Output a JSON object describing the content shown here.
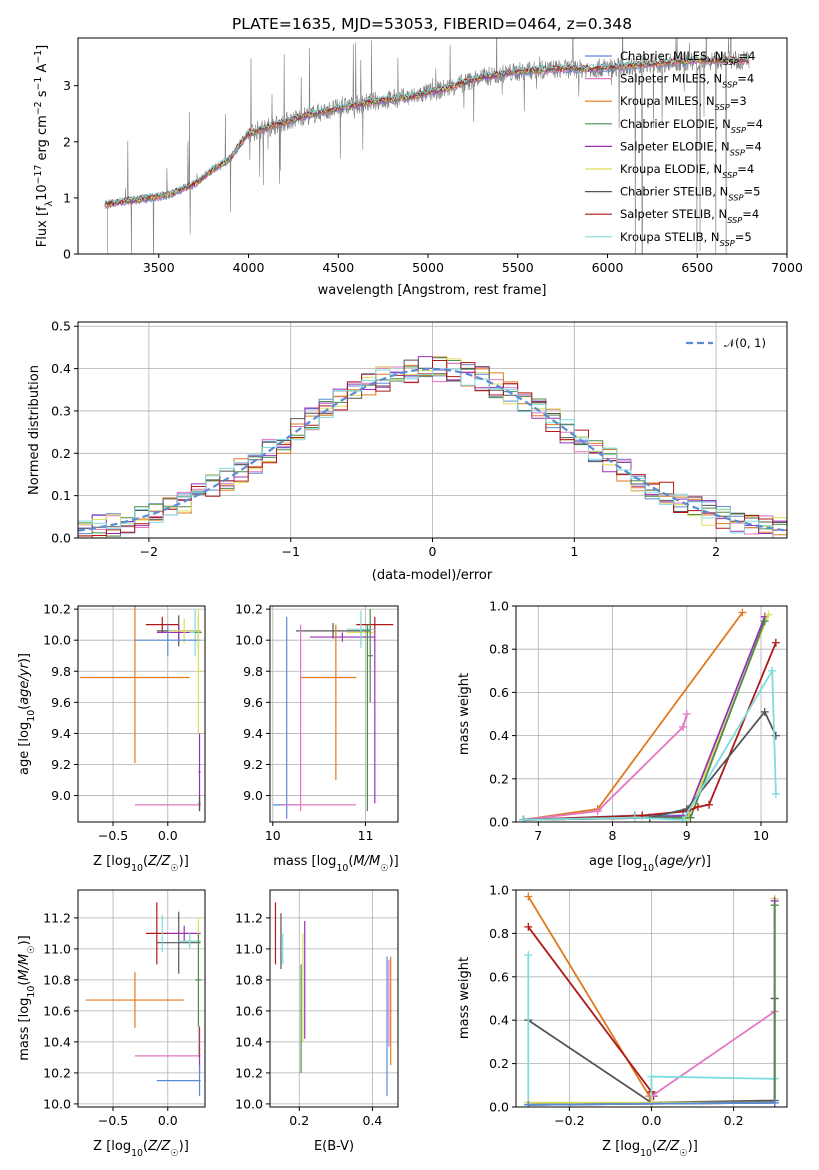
{
  "title": "PLATE=1635, MJD=53053, FIBERID=0464, z=0.348",
  "colors": {
    "chabrier_miles": "#5b8bd6",
    "salpeter_miles": "#e377c2",
    "kroupa_miles": "#e07a1f",
    "chabrier_elodie": "#4c8c4c",
    "salpeter_elodie": "#9b30b8",
    "kroupa_elodie": "#dede5a",
    "chabrier_stelib": "#555555",
    "salpeter_stelib": "#b01818",
    "kroupa_stelib": "#7fdcdc",
    "data": "#808080"
  },
  "chart_data": [
    {
      "id": "spectrum",
      "type": "line",
      "xlabel": "wavelength [Angstrom, rest frame]",
      "ylabel": "Flux [f_λ10^-17 erg cm^-2 s^-1 A^-1]",
      "xlim": [
        3050,
        7000
      ],
      "ylim": [
        0,
        3.85
      ],
      "xticks": [
        3500,
        4000,
        4500,
        5000,
        5500,
        6000,
        6500,
        7000
      ],
      "yticks": [
        0,
        1,
        2,
        3
      ],
      "grid": false,
      "legend": "top-right",
      "continuum": {
        "x": [
          3200,
          3400,
          3550,
          3700,
          3800,
          3900,
          3950,
          4000,
          4150,
          4300,
          4500,
          4700,
          4900,
          5100,
          5300,
          5500,
          5700,
          5900,
          6100,
          6300,
          6500,
          6700,
          6780
        ],
        "y": [
          0.88,
          0.98,
          1.05,
          1.25,
          1.5,
          1.7,
          1.95,
          2.15,
          2.3,
          2.45,
          2.6,
          2.72,
          2.8,
          2.95,
          3.15,
          3.25,
          3.3,
          3.3,
          3.35,
          3.4,
          3.45,
          3.45,
          3.45
        ]
      },
      "series": [
        {
          "name": "Chabrier MILES, N_SSP=4",
          "color_key": "chabrier_miles"
        },
        {
          "name": "Salpeter MILES, N_SSP=4",
          "color_key": "salpeter_miles"
        },
        {
          "name": "Kroupa MILES, N_SSP=3",
          "color_key": "kroupa_miles"
        },
        {
          "name": "Chabrier ELODIE, N_SSP=4",
          "color_key": "chabrier_elodie"
        },
        {
          "name": "Salpeter ELODIE, N_SSP=4",
          "color_key": "salpeter_elodie"
        },
        {
          "name": "Kroupa ELODIE, N_SSP=4",
          "color_key": "kroupa_elodie"
        },
        {
          "name": "Chabrier STELIB, N_SSP=5",
          "color_key": "chabrier_stelib"
        },
        {
          "name": "Salpeter STELIB, N_SSP=4",
          "color_key": "salpeter_stelib"
        },
        {
          "name": "Kroupa STELIB, N_SSP=5",
          "color_key": "kroupa_stelib"
        }
      ]
    },
    {
      "id": "residuals",
      "type": "line",
      "xlabel": "(data-model)/error",
      "ylabel": "Normed distribution",
      "xlim": [
        -2.5,
        2.5
      ],
      "ylim": [
        0,
        0.51
      ],
      "xticks": [
        -2,
        -1,
        0,
        1,
        2
      ],
      "yticks": [
        0.0,
        0.1,
        0.2,
        0.3,
        0.4,
        0.5
      ],
      "grid": true,
      "legend": "top-right",
      "gaussian_label": "𝒩(0, 1)",
      "bin_width": 0.1
    },
    {
      "id": "z_age",
      "type": "scatter",
      "xlabel": "Z [log10(Z/Z☉)]",
      "ylabel": "age [log10(age/yr)]",
      "xlim": [
        -0.82,
        0.34
      ],
      "ylim": [
        8.83,
        10.22
      ],
      "xticks": [
        -0.5,
        0.0
      ],
      "yticks": [
        9.0,
        9.2,
        9.4,
        9.6,
        9.8,
        10.0,
        10.2
      ],
      "grid": true,
      "points": [
        {
          "c": "salpeter_stelib",
          "x": -0.05,
          "xerr": 0.15,
          "y": 10.1,
          "yerr": 0.05
        },
        {
          "c": "chabrier_stelib",
          "x": 0.1,
          "xerr": 0.2,
          "y": 10.06,
          "yerr": 0.1
        },
        {
          "c": "salpeter_elodie",
          "x": 0.1,
          "xerr": 0.2,
          "y": 10.05,
          "yerr": 0.05
        },
        {
          "c": "kroupa_elodie",
          "x": 0.15,
          "xerr": 0.15,
          "y": 10.06,
          "yerr": 0.08
        },
        {
          "c": "kroupa_stelib",
          "x": 0.25,
          "xerr": 0.05,
          "y": 10.05,
          "yerr": 0.15
        },
        {
          "c": "chabrier_elodie",
          "x": 0.28,
          "xerr": 0.03,
          "y": 10.05,
          "yerr": 0.1
        },
        {
          "c": "kroupa_miles",
          "x": -0.3,
          "xerr": 0.5,
          "y": 9.76,
          "yerr": 0.55
        },
        {
          "c": "chabrier_miles",
          "x": 0.0,
          "xerr": 0.3,
          "y": 10.0,
          "yerr": 0.1
        },
        {
          "c": "kroupa_elodie",
          "x": 0.28,
          "xerr": 0.02,
          "y": 9.8,
          "yerr": 0.4
        },
        {
          "c": "salpeter_elodie",
          "x": 0.29,
          "xerr": 0.01,
          "y": 9.15,
          "yerr": 0.25
        },
        {
          "c": "salpeter_miles",
          "x": 0.0,
          "xerr": 0.3,
          "y": 8.94,
          "yerr": 0.0
        },
        {
          "c": "chabrier_stelib",
          "x": 0.29,
          "xerr": 0.01,
          "y": 8.95,
          "yerr": 0.05
        }
      ]
    },
    {
      "id": "mass_age",
      "type": "scatter",
      "xlabel": "mass [log10(M/M☉)]",
      "xlim": [
        9.97,
        11.35
      ],
      "ylim": [
        8.83,
        10.22
      ],
      "xticks": [
        10,
        11
      ],
      "yticks": [
        9.0,
        9.2,
        9.4,
        9.6,
        9.8,
        10.0,
        10.2
      ],
      "grid": true,
      "points": [
        {
          "c": "salpeter_stelib",
          "x": 11.1,
          "xerr": 0.2,
          "y": 10.1,
          "yerr": 0.05
        },
        {
          "c": "chabrier_stelib",
          "x": 10.65,
          "xerr": 0.4,
          "y": 10.06,
          "yerr": 0.05
        },
        {
          "c": "salpeter_elodie",
          "x": 10.75,
          "xerr": 0.35,
          "y": 10.02,
          "yerr": 0.03
        },
        {
          "c": "kroupa_elodie",
          "x": 10.95,
          "xerr": 0.15,
          "y": 10.05,
          "yerr": 0.08
        },
        {
          "c": "kroupa_stelib",
          "x": 10.95,
          "xerr": 0.15,
          "y": 10.07,
          "yerr": 0.12
        },
        {
          "c": "chabrier_elodie",
          "x": 11.05,
          "xerr": 0.03,
          "y": 9.9,
          "yerr": 0.3
        },
        {
          "c": "kroupa_miles",
          "x": 10.6,
          "xerr": 0.3,
          "y": 9.76,
          "yerr": 0.0
        },
        {
          "c": "kroupa_miles",
          "x": 10.68,
          "xerr": 0.0,
          "y": 9.6,
          "yerr": 0.5
        },
        {
          "c": "chabrier_miles",
          "x": 10.15,
          "xerr": 0.0,
          "y": 9.5,
          "yerr": 0.65
        },
        {
          "c": "chabrier_miles",
          "x": 10.15,
          "xerr": 0.15,
          "y": 8.94,
          "yerr": 0.0
        },
        {
          "c": "salpeter_miles",
          "x": 10.5,
          "xerr": 0.4,
          "y": 8.94,
          "yerr": 0.0
        },
        {
          "c": "salpeter_miles",
          "x": 10.3,
          "xerr": 0.0,
          "y": 9.5,
          "yerr": 0.6
        },
        {
          "c": "salpeter_elodie",
          "x": 11.1,
          "xerr": 0.0,
          "y": 9.5,
          "yerr": 0.55
        },
        {
          "c": "chabrier_elodie",
          "x": 11.02,
          "xerr": 0.0,
          "y": 9.5,
          "yerr": 0.6
        }
      ]
    },
    {
      "id": "age_weight",
      "type": "line",
      "xlabel": "age [log10(age/yr)]",
      "ylabel": "mass weight",
      "xlim": [
        6.7,
        10.35
      ],
      "ylim": [
        0,
        1.0
      ],
      "xticks": [
        7,
        8,
        9,
        10
      ],
      "yticks": [
        0.0,
        0.2,
        0.4,
        0.6,
        0.8,
        1.0
      ],
      "grid": true,
      "series": [
        {
          "c": "kroupa_miles",
          "x": [
            6.8,
            7.8,
            9.75
          ],
          "y": [
            0.01,
            0.06,
            0.97
          ]
        },
        {
          "c": "salpeter_miles",
          "x": [
            6.8,
            7.8,
            8.95,
            9.0
          ],
          "y": [
            0.01,
            0.05,
            0.44,
            0.5
          ]
        },
        {
          "c": "chabrier_miles",
          "x": [
            6.8,
            8.3,
            8.95,
            9.0
          ],
          "y": [
            0.01,
            0.03,
            0.03,
            0.02
          ]
        },
        {
          "c": "salpeter_elodie",
          "x": [
            6.8,
            8.5,
            9.0,
            10.05
          ],
          "y": [
            0.01,
            0.02,
            0.03,
            0.95
          ]
        },
        {
          "c": "kroupa_elodie",
          "x": [
            6.8,
            8.5,
            9.0,
            10.1
          ],
          "y": [
            0.01,
            0.02,
            0.01,
            0.96
          ]
        },
        {
          "c": "chabrier_elodie",
          "x": [
            6.8,
            8.5,
            9.05,
            10.05
          ],
          "y": [
            0.01,
            0.02,
            0.02,
            0.93
          ]
        },
        {
          "c": "salpeter_stelib",
          "x": [
            6.8,
            8.4,
            9.0,
            9.15,
            9.3,
            10.2
          ],
          "y": [
            0.01,
            0.03,
            0.05,
            0.07,
            0.08,
            0.83
          ]
        },
        {
          "c": "chabrier_stelib",
          "x": [
            6.8,
            8.5,
            9.0,
            10.05,
            10.2
          ],
          "y": [
            0.01,
            0.02,
            0.06,
            0.51,
            0.4
          ]
        },
        {
          "c": "kroupa_stelib",
          "x": [
            6.8,
            8.3,
            8.95,
            10.15,
            10.2
          ],
          "y": [
            0.01,
            0.02,
            0.01,
            0.7,
            0.13
          ]
        }
      ]
    },
    {
      "id": "z_mass",
      "type": "scatter",
      "xlabel": "Z [log10(Z/Z☉)]",
      "ylabel": "mass [log10(M/M☉)]",
      "xlim": [
        -0.82,
        0.34
      ],
      "ylim": [
        9.98,
        11.38
      ],
      "xticks": [
        -0.5,
        0.0
      ],
      "yticks": [
        10.0,
        10.2,
        10.4,
        10.6,
        10.8,
        11.0,
        11.2
      ],
      "grid": true,
      "points": [
        {
          "c": "salpeter_stelib",
          "x": -0.1,
          "xerr": 0.1,
          "y": 11.1,
          "yerr": 0.2
        },
        {
          "c": "chabrier_stelib",
          "x": 0.1,
          "xerr": 0.2,
          "y": 11.04,
          "yerr": 0.2
        },
        {
          "c": "salpeter_elodie",
          "x": 0.15,
          "xerr": 0.15,
          "y": 11.1,
          "yerr": 0.05
        },
        {
          "c": "kroupa_elodie",
          "x": 0.2,
          "xerr": 0.1,
          "y": 11.05,
          "yerr": 0.05
        },
        {
          "c": "kroupa_stelib",
          "x": 0.2,
          "xerr": 0.1,
          "y": 11.05,
          "yerr": 0.05
        },
        {
          "c": "kroupa_stelib",
          "x": -0.05,
          "xerr": 0.0,
          "y": 11.1,
          "yerr": 0.12
        },
        {
          "c": "kroupa_elodie",
          "x": 0.28,
          "xerr": 0.0,
          "y": 10.75,
          "yerr": 0.45
        },
        {
          "c": "chabrier_elodie",
          "x": 0.28,
          "xerr": 0.03,
          "y": 10.8,
          "yerr": 0.3
        },
        {
          "c": "kroupa_miles",
          "x": -0.3,
          "xerr": 0.45,
          "y": 10.67,
          "yerr": 0.18
        },
        {
          "c": "salpeter_miles",
          "x": 0.0,
          "xerr": 0.3,
          "y": 10.31,
          "yerr": 0.0
        },
        {
          "c": "salpeter_elodie",
          "x": 0.29,
          "xerr": 0.0,
          "y": 10.35,
          "yerr": 0.15
        },
        {
          "c": "chabrier_miles",
          "x": 0.1,
          "xerr": 0.2,
          "y": 10.15,
          "yerr": 0.0
        },
        {
          "c": "chabrier_miles",
          "x": 0.29,
          "xerr": 0.0,
          "y": 10.15,
          "yerr": 0.1
        }
      ]
    },
    {
      "id": "ebv_mass",
      "type": "scatter",
      "xlabel": "E(B-V)",
      "xlim": [
        0.12,
        0.47
      ],
      "ylim": [
        9.98,
        11.38
      ],
      "xticks": [
        0.2,
        0.4
      ],
      "yticks": [
        10.0,
        10.2,
        10.4,
        10.6,
        10.8,
        11.0,
        11.2
      ],
      "grid": true,
      "points": [
        {
          "c": "salpeter_stelib",
          "x": 0.135,
          "xerr": 0.0,
          "y": 11.1,
          "yerr": 0.2
        },
        {
          "c": "chabrier_stelib",
          "x": 0.15,
          "xerr": 0.0,
          "y": 11.05,
          "yerr": 0.18
        },
        {
          "c": "kroupa_stelib",
          "x": 0.155,
          "xerr": 0.0,
          "y": 11.0,
          "yerr": 0.1
        },
        {
          "c": "salpeter_elodie",
          "x": 0.215,
          "xerr": 0.0,
          "y": 10.8,
          "yerr": 0.38
        },
        {
          "c": "kroupa_elodie",
          "x": 0.21,
          "xerr": 0.0,
          "y": 10.75,
          "yerr": 0.35
        },
        {
          "c": "chabrier_elodie",
          "x": 0.205,
          "xerr": 0.0,
          "y": 10.55,
          "yerr": 0.35
        },
        {
          "c": "chabrier_miles",
          "x": 0.44,
          "xerr": 0.0,
          "y": 10.5,
          "yerr": 0.45
        },
        {
          "c": "kroupa_miles",
          "x": 0.45,
          "xerr": 0.0,
          "y": 10.6,
          "yerr": 0.35
        },
        {
          "c": "salpeter_miles",
          "x": 0.445,
          "xerr": 0.0,
          "y": 10.65,
          "yerr": 0.28
        }
      ]
    },
    {
      "id": "z_weight",
      "type": "line",
      "xlabel": "Z [log10(Z/Z☉)]",
      "ylabel": "mass weight",
      "xlim": [
        -0.33,
        0.33
      ],
      "ylim": [
        0,
        1.0
      ],
      "xticks": [
        -0.2,
        0.0,
        0.2
      ],
      "yticks": [
        0.0,
        0.2,
        0.4,
        0.6,
        0.8,
        1.0
      ],
      "grid": true,
      "series": [
        {
          "c": "kroupa_miles",
          "x": [
            -0.3,
            -0.005,
            0.0
          ],
          "y": [
            0.97,
            0.05,
            0.02
          ]
        },
        {
          "c": "salpeter_stelib",
          "x": [
            -0.3,
            0.0,
            0.005
          ],
          "y": [
            0.83,
            0.07,
            0.05
          ]
        },
        {
          "c": "salpeter_miles",
          "x": [
            0.0,
            0.3,
            0.3
          ],
          "y": [
            0.05,
            0.44,
            0.5
          ]
        },
        {
          "c": "chabrier_stelib",
          "x": [
            -0.3,
            0.0,
            0.3,
            0.3
          ],
          "y": [
            0.4,
            0.02,
            0.03,
            0.5
          ]
        },
        {
          "c": "kroupa_stelib",
          "x": [
            -0.3,
            -0.3,
            -0.2,
            0.0,
            0.0,
            0.3,
            0.3
          ],
          "y": [
            0.7,
            0.02,
            0.01,
            0.02,
            0.14,
            0.13,
            0.13
          ]
        },
        {
          "c": "kroupa_elodie",
          "x": [
            -0.3,
            0.0,
            0.3,
            0.3
          ],
          "y": [
            0.02,
            0.02,
            0.02,
            0.96
          ]
        },
        {
          "c": "salpeter_elodie",
          "x": [
            -0.3,
            0.3,
            0.3
          ],
          "y": [
            0.01,
            0.02,
            0.95
          ]
        },
        {
          "c": "chabrier_elodie",
          "x": [
            -0.3,
            0.3,
            0.3
          ],
          "y": [
            0.01,
            0.02,
            0.93
          ]
        },
        {
          "c": "chabrier_miles",
          "x": [
            -0.3,
            0.3
          ],
          "y": [
            0.01,
            0.02
          ]
        }
      ]
    }
  ]
}
